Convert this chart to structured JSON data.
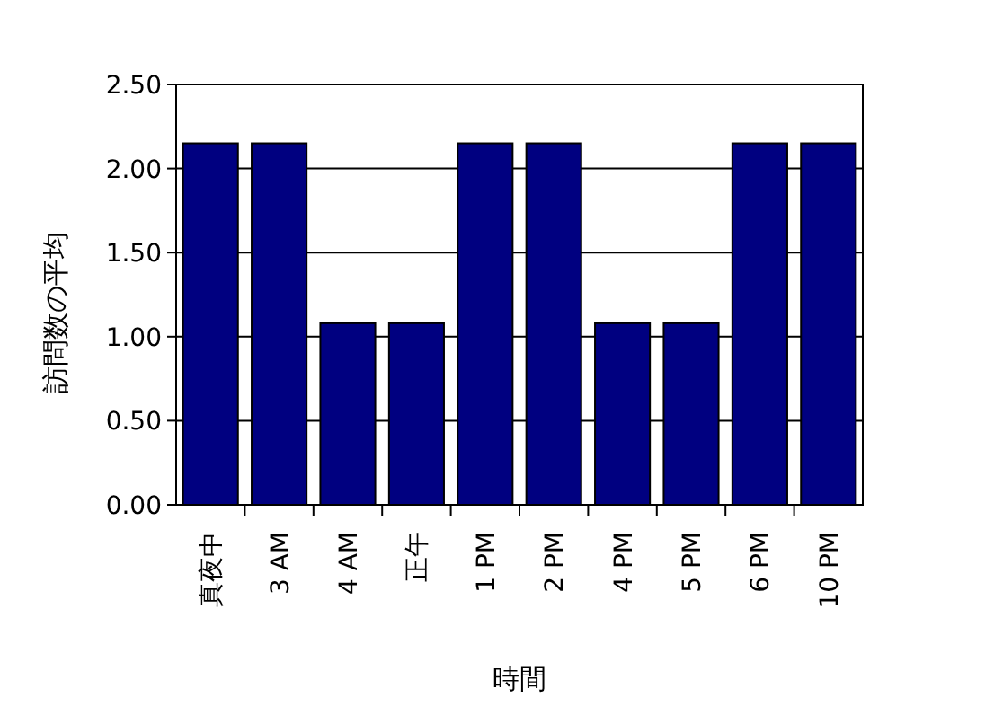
{
  "chart_data": {
    "type": "bar",
    "xlabel": "時間",
    "ylabel": "訪問数の平均",
    "categories": [
      "真夜中",
      "3 AM",
      "4 AM",
      "正午",
      "1 PM",
      "2 PM",
      "4 PM",
      "5 PM",
      "6 PM",
      "10 PM"
    ],
    "values": [
      2.15,
      2.15,
      1.08,
      1.08,
      2.15,
      2.15,
      1.08,
      1.08,
      2.15,
      2.15
    ],
    "color": "#000080",
    "ylim": [
      0,
      2.5
    ],
    "yticks": [
      {
        "value": 0,
        "label": "0.00"
      },
      {
        "value": 0.5,
        "label": "0.50"
      },
      {
        "value": 1,
        "label": "1.00"
      },
      {
        "value": 1.5,
        "label": "1.50"
      },
      {
        "value": 2,
        "label": "2.00"
      },
      {
        "value": 2.5,
        "label": "2.50"
      }
    ],
    "grid": "y"
  }
}
